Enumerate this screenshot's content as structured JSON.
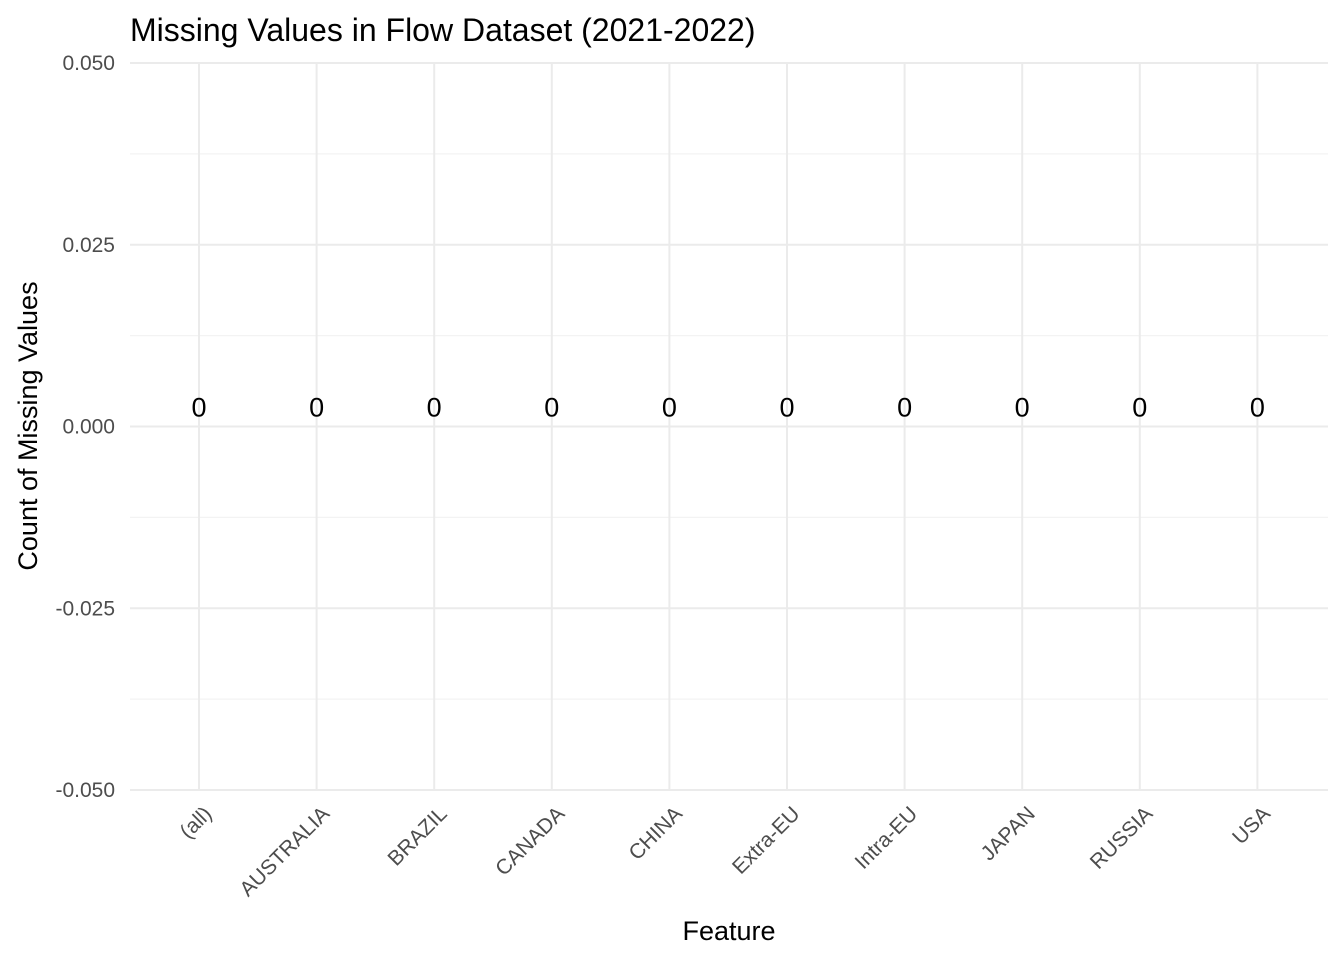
{
  "chart_data": {
    "type": "bar",
    "title": "Missing Values in Flow Dataset (2021-2022)",
    "xlabel": "Feature",
    "ylabel": "Count of Missing Values",
    "categories": [
      "(all)",
      "AUSTRALIA",
      "BRAZIL",
      "CANADA",
      "CHINA",
      "Extra-EU",
      "Intra-EU",
      "JAPAN",
      "RUSSIA",
      "USA"
    ],
    "values": [
      0,
      0,
      0,
      0,
      0,
      0,
      0,
      0,
      0,
      0
    ],
    "data_labels": [
      "0",
      "0",
      "0",
      "0",
      "0",
      "0",
      "0",
      "0",
      "0",
      "0"
    ],
    "ylim": [
      -0.05,
      0.05
    ],
    "y_ticks": [
      -0.05,
      -0.025,
      0,
      0.025,
      0.05
    ],
    "y_tick_labels": [
      "-0.050",
      "-0.025",
      "0.000",
      "0.025",
      "0.050"
    ],
    "grid": true,
    "legend": "none"
  }
}
